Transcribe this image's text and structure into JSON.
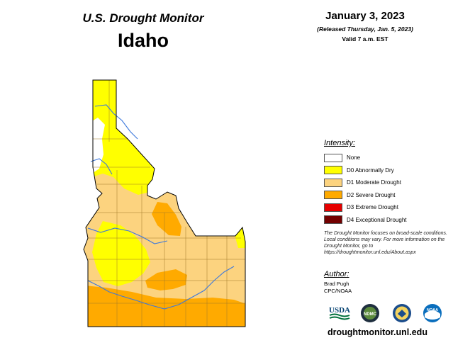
{
  "header": {
    "monitor_title": "U.S. Drought Monitor",
    "state": "Idaho",
    "date": "January 3, 2023",
    "released": "(Released Thursday, Jan. 5, 2023)",
    "valid": "Valid 7 a.m. EST"
  },
  "legend": {
    "title": "Intensity:",
    "items": [
      {
        "label": "None",
        "color": "#ffffff"
      },
      {
        "label": "D0 Abnormally Dry",
        "color": "#ffff00"
      },
      {
        "label": "D1 Moderate Drought",
        "color": "#fcd37f"
      },
      {
        "label": "D2 Severe Drought",
        "color": "#ffaa00"
      },
      {
        "label": "D3 Extreme Drought",
        "color": "#e60000"
      },
      {
        "label": "D4 Exceptional Drought",
        "color": "#730000"
      }
    ]
  },
  "note": "The Drought Monitor focuses on broad-scale conditions. Local conditions may vary. For more information on the Drought Monitor, go to https://droughtmonitor.unl.edu/About.aspx",
  "author": {
    "title": "Author:",
    "name": "Brad Pugh",
    "org": "CPC/NOAA"
  },
  "logos": {
    "usda": "USDA",
    "ndmc": "NDMC",
    "noaa": "NOAA"
  },
  "url": "droughtmonitor.unl.edu"
}
